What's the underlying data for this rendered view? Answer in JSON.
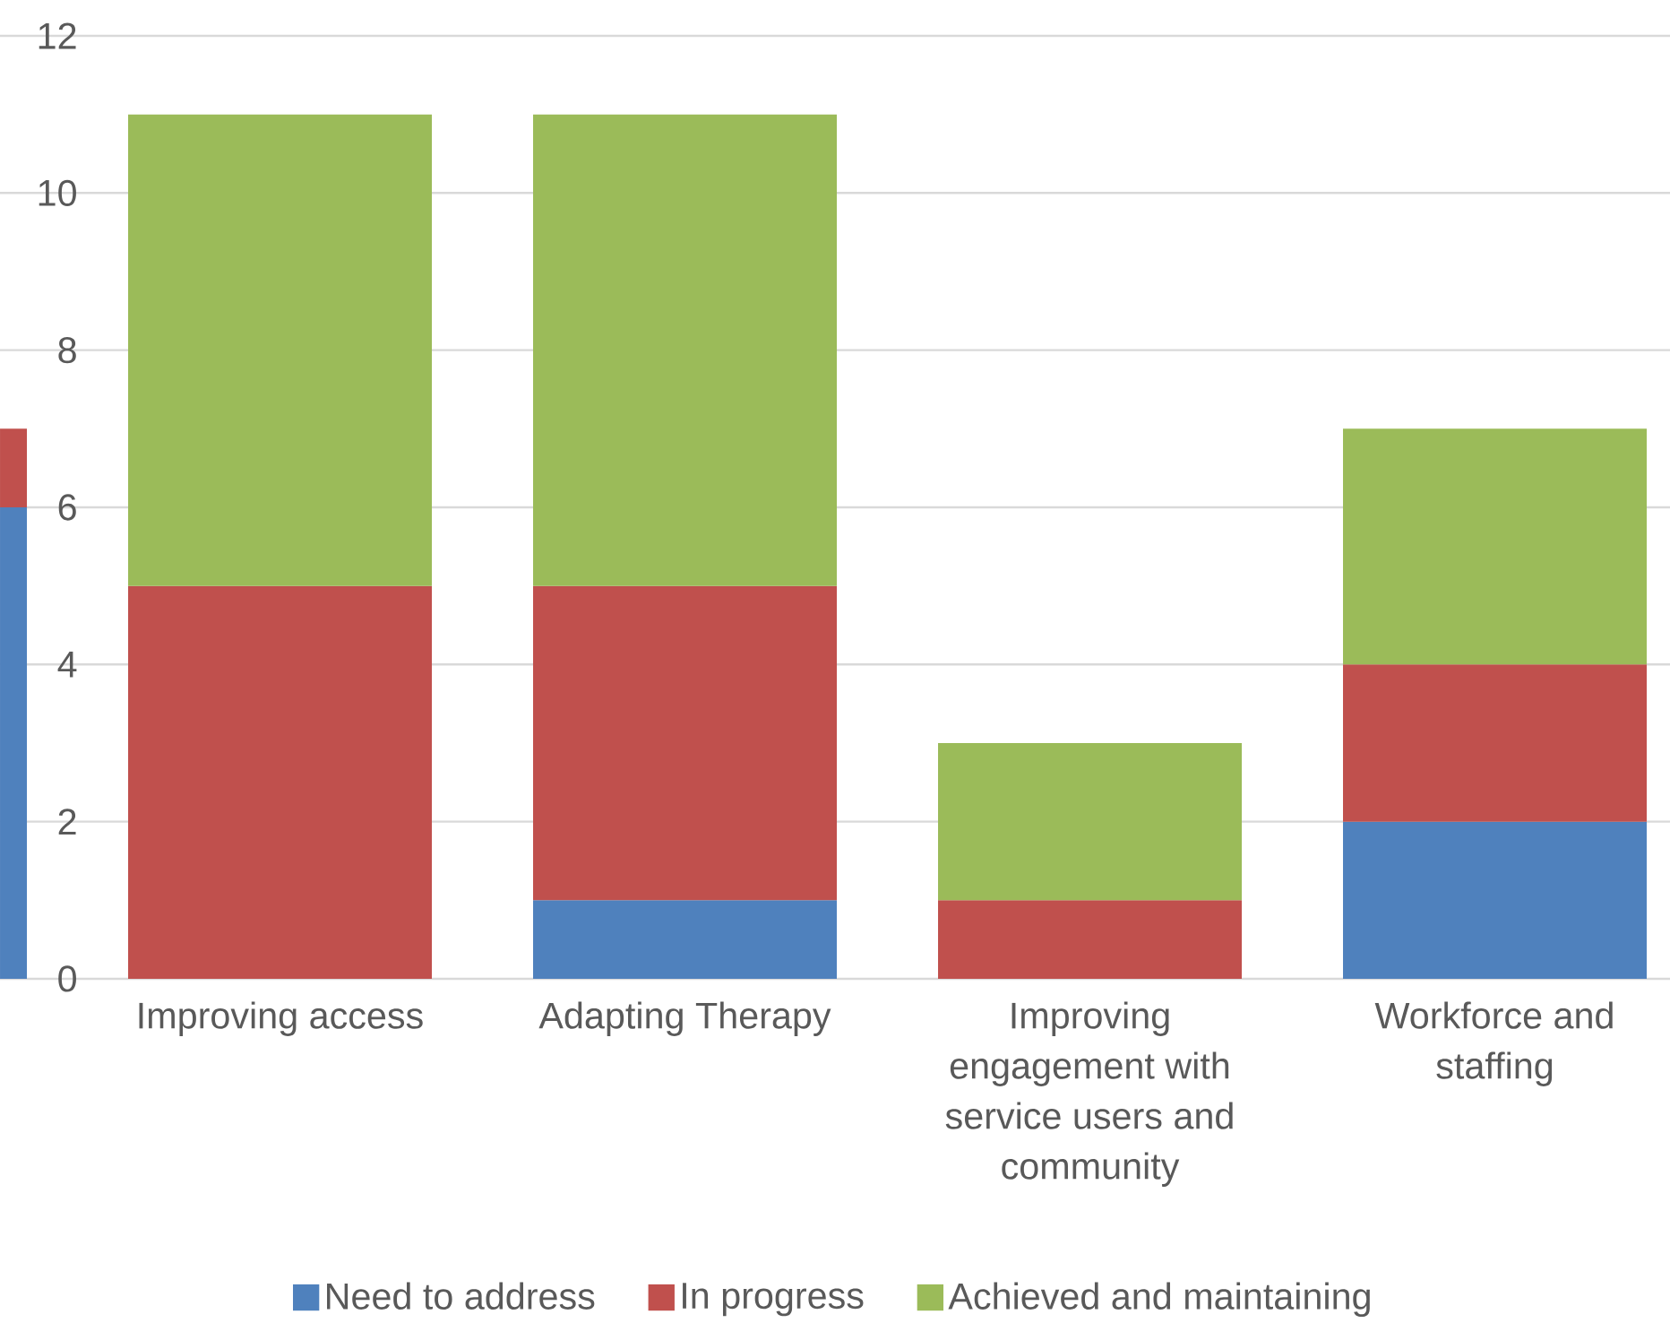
{
  "chart_data": {
    "type": "bar",
    "stacked": true,
    "categories": [
      null,
      "Improving access",
      "Adapting Therapy",
      "Improving engagement with service users and community",
      "Workforce and staffing"
    ],
    "series": [
      {
        "name": "Need to address",
        "color": "#4f81bd",
        "values": [
          6,
          null,
          1,
          null,
          2
        ]
      },
      {
        "name": "In progress",
        "color": "#c0504d",
        "values": [
          1,
          5,
          4,
          1,
          2
        ]
      },
      {
        "name": "Achieved and maintaining",
        "color": "#9bbb59",
        "values": [
          null,
          6,
          6,
          2,
          3
        ]
      }
    ],
    "ylim": [
      0,
      12
    ],
    "yticks": [
      0,
      2,
      4,
      6,
      8,
      10,
      12
    ],
    "grid": "y",
    "legend": "bottom"
  }
}
